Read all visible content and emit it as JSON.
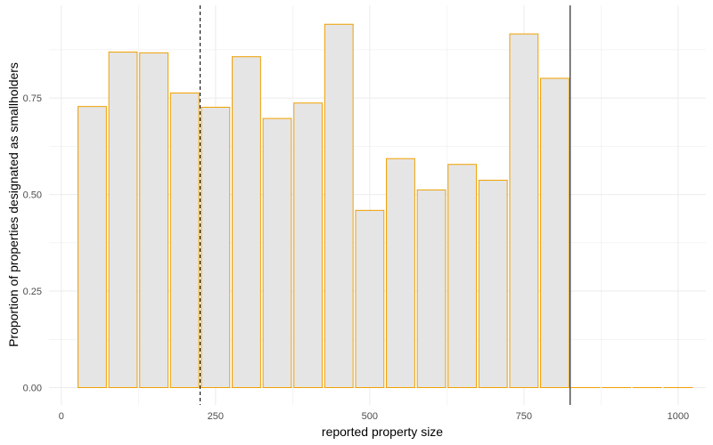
{
  "chart_data": {
    "type": "bar",
    "xlabel": "reported property size",
    "ylabel": "Proportion of properties designated as smallholders",
    "xlim": [
      -20,
      1045
    ],
    "ylim": [
      -0.045,
      0.99
    ],
    "grid": true,
    "bar_width": 46,
    "bar_fill": "#e5e5e5",
    "bar_stroke": "#f0a000",
    "x": [
      50,
      100,
      150,
      200,
      250,
      300,
      350,
      400,
      450,
      500,
      550,
      600,
      650,
      700,
      750,
      800,
      850,
      900,
      950,
      1000
    ],
    "values": [
      0.728,
      0.869,
      0.867,
      0.763,
      0.726,
      0.857,
      0.697,
      0.737,
      0.941,
      0.459,
      0.593,
      0.512,
      0.578,
      0.537,
      0.916,
      0.801,
      0.0,
      0.0,
      0.0,
      0.0
    ],
    "x_ticks": [
      0,
      250,
      500,
      750,
      1000
    ],
    "x_tick_labels": [
      "0",
      "250",
      "500",
      "750",
      "1000"
    ],
    "y_ticks": [
      0,
      0.25,
      0.5,
      0.75
    ],
    "y_tick_labels": [
      "0.00",
      "0.25",
      "0.50",
      "0.75"
    ],
    "vlines": [
      {
        "x": 225,
        "style": "dashed",
        "color": "#000000"
      },
      {
        "x": 825,
        "style": "solid",
        "color": "#000000"
      }
    ]
  }
}
